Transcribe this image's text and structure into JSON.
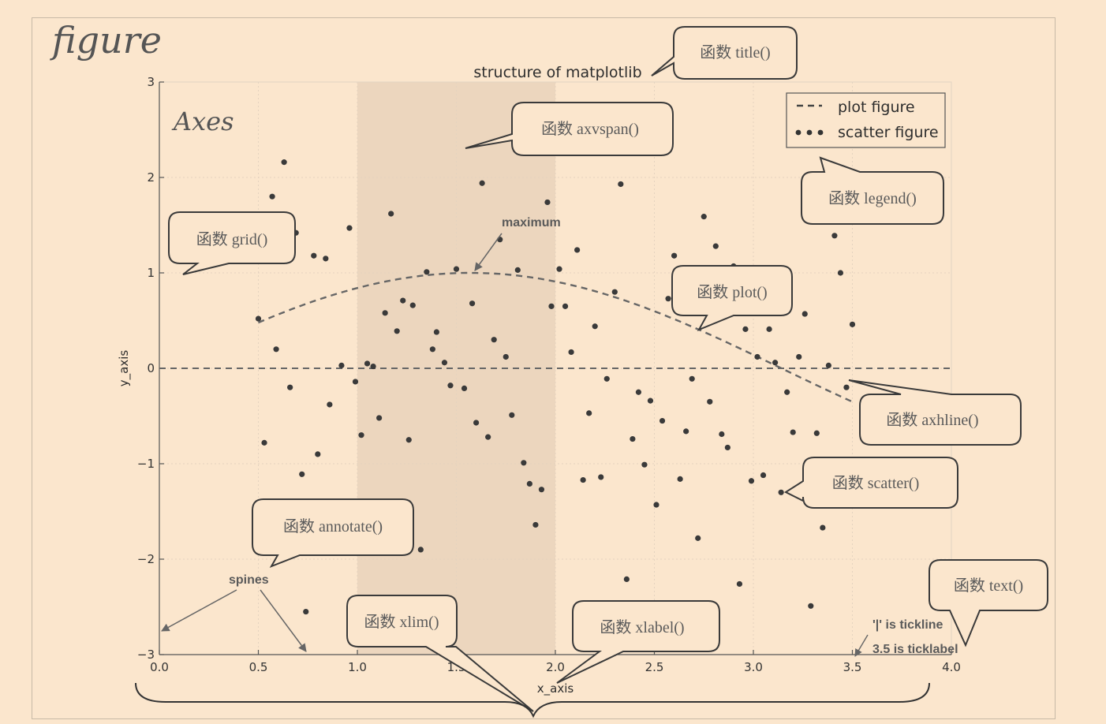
{
  "figure_label": "figure",
  "axes_label": "Axes",
  "title": "structure of matplotlib",
  "legend": {
    "plot": "plot figure",
    "scatter": "scatter figure"
  },
  "annotations": {
    "maximum": "maximum",
    "spines": "spines",
    "tickline": "'|' is tickline",
    "ticklabel": "3.5 is ticklabel"
  },
  "callouts": {
    "title": "函数 title()",
    "axvspan": "函数 axvspan()",
    "legend": "函数 legend()",
    "grid": "函数 grid()",
    "plot": "函数 plot()",
    "axhline": "函数 axhline()",
    "scatter": "函数 scatter()",
    "annotate": "函数 annotate()",
    "text": "函数 text()",
    "xlim": "函数 xlim()",
    "xlabel": "函数 xlabel()"
  },
  "chart_data": {
    "type": "scatter",
    "title": "structure of matplotlib",
    "xlabel": "x_axis",
    "ylabel": "y_axis",
    "xlim": [
      0.0,
      4.0
    ],
    "ylim": [
      -3,
      3
    ],
    "xticks": [
      "0.0",
      "0.5",
      "1.0",
      "1.5",
      "2.0",
      "2.5",
      "3.0",
      "3.5",
      "4.0"
    ],
    "yticks": [
      "3",
      "2",
      "1",
      "0",
      "−1",
      "−2",
      "−3"
    ],
    "grid": true,
    "legend_position": "top-right",
    "axvspan": [
      1.0,
      2.0
    ],
    "axhline": 0,
    "plot_series": {
      "name": "plot figure",
      "function": "sin(x)",
      "x_range": [
        0.5,
        3.5
      ]
    },
    "maximum_point": [
      1.5708,
      1.0
    ],
    "scatter_series": {
      "name": "scatter figure",
      "points": [
        [
          0.5,
          0.52
        ],
        [
          0.53,
          -0.78
        ],
        [
          0.57,
          1.8
        ],
        [
          0.59,
          0.2
        ],
        [
          0.63,
          2.16
        ],
        [
          0.66,
          -0.2
        ],
        [
          0.69,
          1.42
        ],
        [
          0.72,
          -1.11
        ],
        [
          0.74,
          -2.55
        ],
        [
          0.78,
          1.18
        ],
        [
          0.8,
          -0.9
        ],
        [
          0.84,
          1.15
        ],
        [
          0.86,
          -0.38
        ],
        [
          0.92,
          0.03
        ],
        [
          0.96,
          1.47
        ],
        [
          0.99,
          -0.14
        ],
        [
          1.02,
          -0.7
        ],
        [
          1.05,
          0.05
        ],
        [
          1.08,
          0.02
        ],
        [
          1.11,
          -0.52
        ],
        [
          1.14,
          0.58
        ],
        [
          1.17,
          1.62
        ],
        [
          1.2,
          0.39
        ],
        [
          1.23,
          0.71
        ],
        [
          1.26,
          -0.75
        ],
        [
          1.28,
          0.66
        ],
        [
          1.32,
          -1.9
        ],
        [
          1.35,
          1.01
        ],
        [
          1.38,
          0.2
        ],
        [
          1.4,
          0.38
        ],
        [
          1.44,
          0.06
        ],
        [
          1.47,
          -0.18
        ],
        [
          1.5,
          1.04
        ],
        [
          1.54,
          -0.21
        ],
        [
          1.58,
          0.68
        ],
        [
          1.6,
          -0.57
        ],
        [
          1.63,
          1.94
        ],
        [
          1.66,
          -0.72
        ],
        [
          1.69,
          0.3
        ],
        [
          1.72,
          1.35
        ],
        [
          1.75,
          0.12
        ],
        [
          1.78,
          -0.49
        ],
        [
          1.81,
          1.03
        ],
        [
          1.84,
          -0.99
        ],
        [
          1.87,
          -1.21
        ],
        [
          1.9,
          -1.64
        ],
        [
          1.93,
          -1.27
        ],
        [
          1.96,
          1.74
        ],
        [
          1.98,
          0.65
        ],
        [
          2.02,
          1.04
        ],
        [
          2.05,
          0.65
        ],
        [
          2.08,
          0.17
        ],
        [
          2.11,
          1.24
        ],
        [
          2.14,
          -1.17
        ],
        [
          2.17,
          -0.47
        ],
        [
          2.2,
          0.44
        ],
        [
          2.23,
          -1.14
        ],
        [
          2.26,
          -0.11
        ],
        [
          2.3,
          0.8
        ],
        [
          2.33,
          1.93
        ],
        [
          2.36,
          -2.21
        ],
        [
          2.39,
          -0.74
        ],
        [
          2.42,
          -0.25
        ],
        [
          2.45,
          -1.01
        ],
        [
          2.48,
          -0.34
        ],
        [
          2.51,
          -1.43
        ],
        [
          2.54,
          -0.55
        ],
        [
          2.57,
          0.73
        ],
        [
          2.6,
          1.18
        ],
        [
          2.63,
          -1.16
        ],
        [
          2.66,
          -0.66
        ],
        [
          2.69,
          -0.11
        ],
        [
          2.72,
          -1.78
        ],
        [
          2.75,
          1.59
        ],
        [
          2.78,
          -0.35
        ],
        [
          2.81,
          1.28
        ],
        [
          2.84,
          -0.69
        ],
        [
          2.87,
          -0.83
        ],
        [
          2.9,
          1.07
        ],
        [
          2.93,
          -2.26
        ],
        [
          2.96,
          0.41
        ],
        [
          2.99,
          -1.18
        ],
        [
          3.02,
          0.12
        ],
        [
          3.05,
          -1.12
        ],
        [
          3.08,
          0.41
        ],
        [
          3.11,
          0.06
        ],
        [
          3.14,
          -1.3
        ],
        [
          3.17,
          -0.25
        ],
        [
          3.2,
          -0.67
        ],
        [
          3.23,
          0.12
        ],
        [
          3.26,
          0.57
        ],
        [
          3.29,
          -2.49
        ],
        [
          3.32,
          -0.68
        ],
        [
          3.35,
          -1.67
        ],
        [
          3.38,
          0.03
        ],
        [
          3.41,
          1.39
        ],
        [
          3.44,
          1.0
        ],
        [
          3.47,
          -0.2
        ],
        [
          3.5,
          0.46
        ]
      ]
    }
  }
}
